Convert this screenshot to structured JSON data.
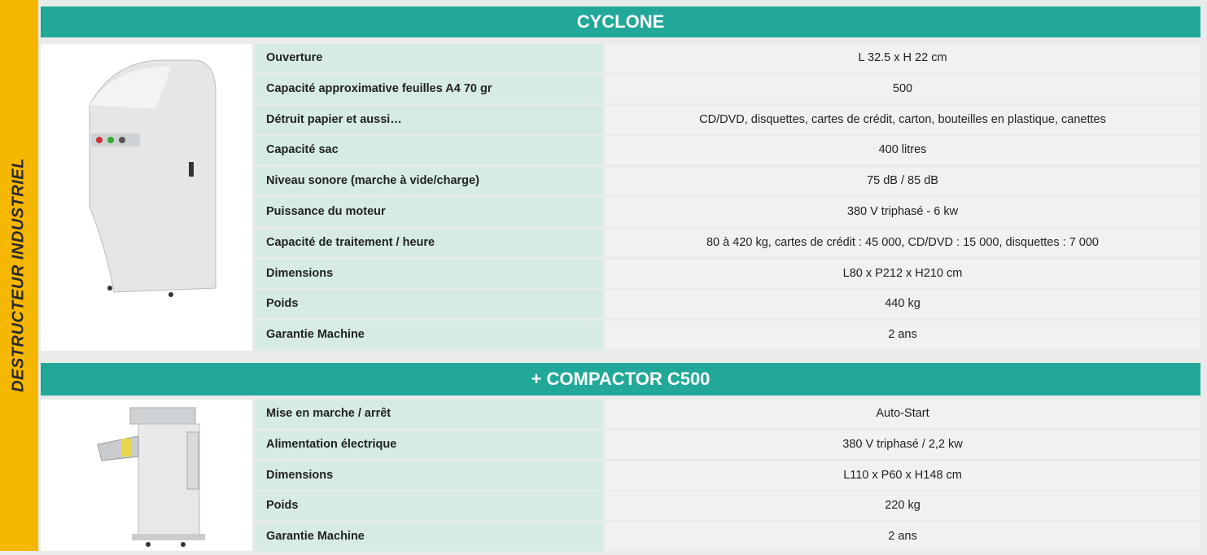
{
  "side_label": "DESTRUCTEUR INDUSTRIEL",
  "sections": [
    {
      "title": "CYCLONE",
      "rows": [
        [
          "Ouverture",
          "L 32.5 x H 22 cm"
        ],
        [
          "Capacité approximative feuilles A4 70 gr",
          "500"
        ],
        [
          "Détruit papier et aussi…",
          "CD/DVD, disquettes, cartes de crédit, carton, bouteilles en plastique, canettes"
        ],
        [
          "Capacité sac",
          "400 litres"
        ],
        [
          "Niveau sonore (marche à vide/charge)",
          "75 dB / 85 dB"
        ],
        [
          "Puissance du moteur",
          "380 V triphasé - 6 kw"
        ],
        [
          "Capacité de traitement / heure",
          "80 à 420 kg, cartes de crédit : 45 000, CD/DVD : 15 000, disquettes : 7 000"
        ],
        [
          "Dimensions",
          "L80 x P212 x H210 cm"
        ],
        [
          "Poids",
          "440 kg"
        ],
        [
          "Garantie Machine",
          "2 ans"
        ]
      ]
    },
    {
      "title": "+ COMPACTOR C500",
      "rows": [
        [
          "Mise en marche / arrêt",
          "Auto-Start"
        ],
        [
          "Alimentation électrique",
          "380 V triphasé / 2,2 kw"
        ],
        [
          "Dimensions",
          "L110 x P60 x H148 cm"
        ],
        [
          "Poids",
          "220 kg"
        ],
        [
          "Garantie Machine",
          "2 ans"
        ]
      ]
    }
  ]
}
